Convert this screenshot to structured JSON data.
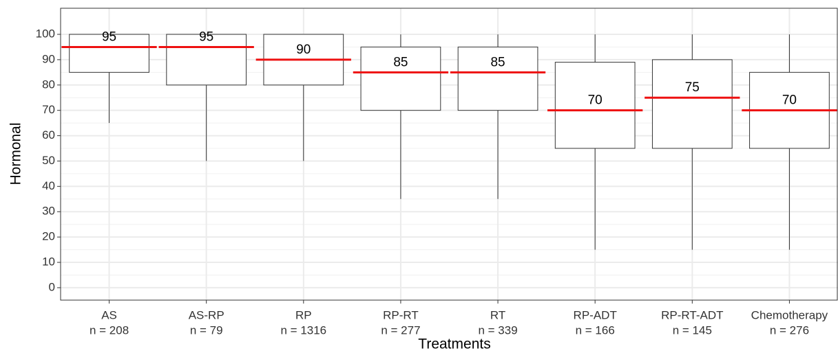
{
  "chart_data": {
    "type": "box",
    "x_label": "Treatments",
    "y_label": "Hormonal",
    "categories": [
      "AS",
      "AS-RP",
      "RP",
      "RP-RT",
      "RT",
      "RP-ADT",
      "RP-RT-ADT",
      "Chemotherapy"
    ],
    "n_labels": [
      "n = 208",
      "n = 79",
      "n = 1316",
      "n = 277",
      "n = 339",
      "n = 166",
      "n = 145",
      "n = 276"
    ],
    "whisker_low": [
      65,
      50,
      50,
      35,
      35,
      15,
      15,
      15
    ],
    "q1": [
      85,
      80,
      80,
      70,
      70,
      55,
      55,
      55
    ],
    "median": [
      95,
      95,
      90,
      85,
      85,
      70,
      75,
      70
    ],
    "q3": [
      100,
      100,
      100,
      95,
      95,
      89,
      90,
      85
    ],
    "whisker_high": [
      100,
      100,
      100,
      100,
      100,
      100,
      100,
      100
    ],
    "median_color": "#ee1111",
    "box_color": "#333333",
    "ylim": [
      -4.9,
      110.3
    ],
    "yticks": [
      0,
      10,
      20,
      30,
      40,
      50,
      60,
      70,
      80,
      90,
      100
    ],
    "grid": true
  }
}
